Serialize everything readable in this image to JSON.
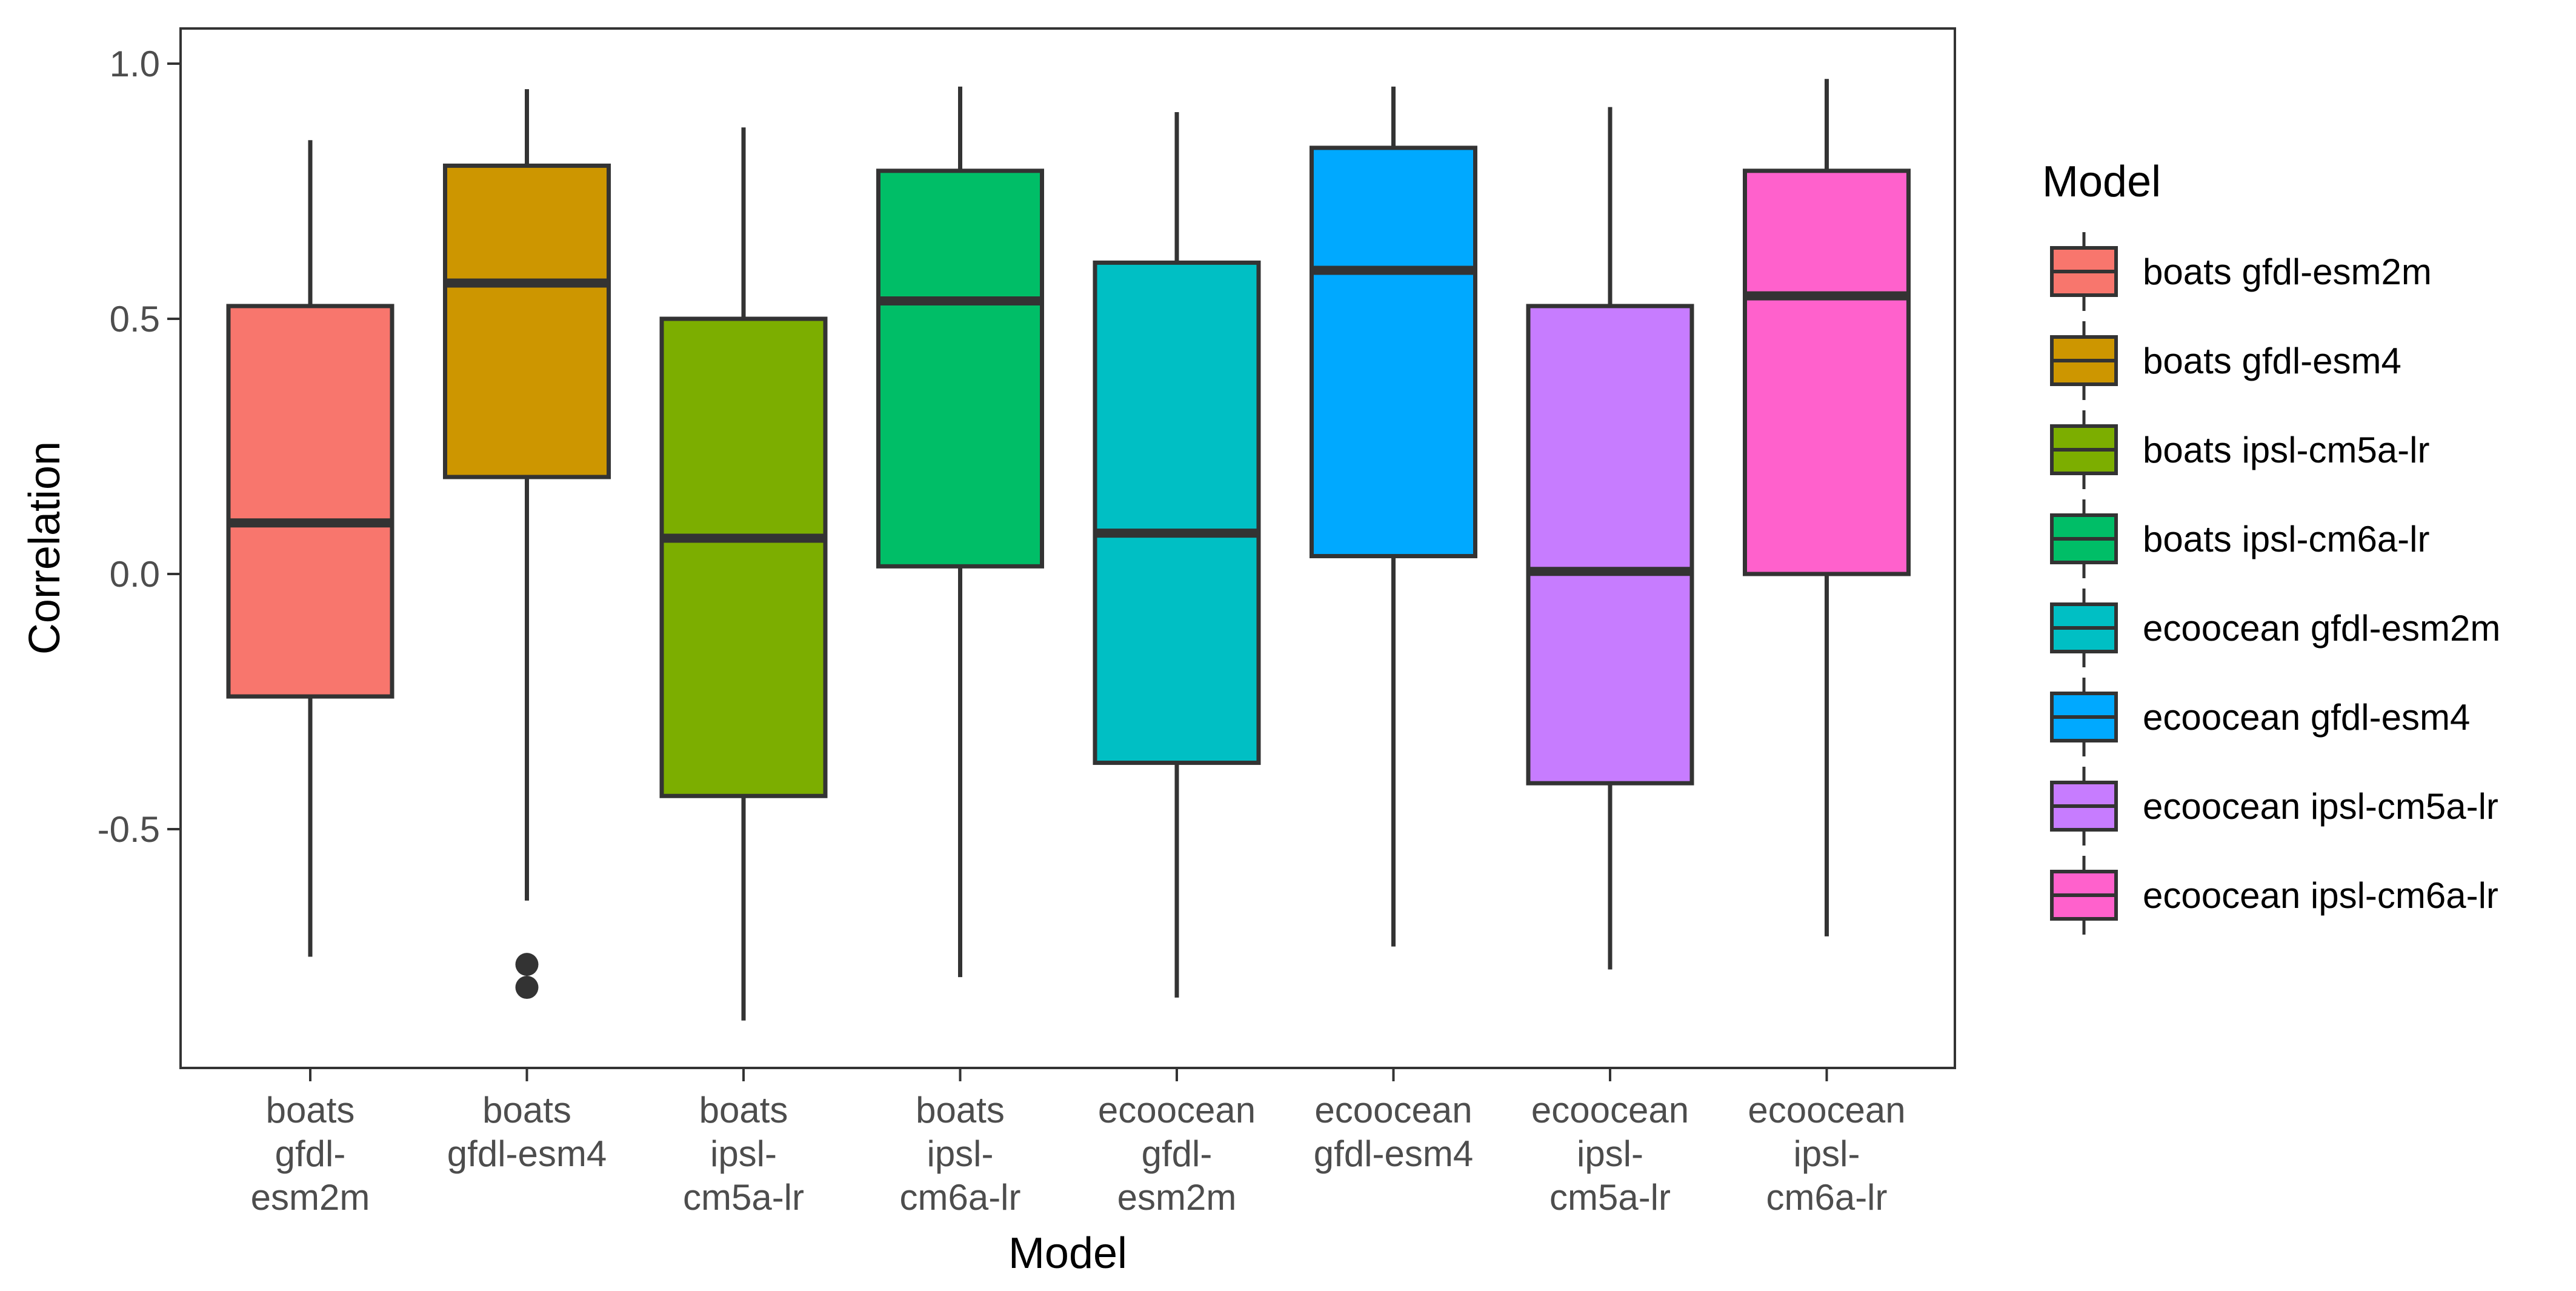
{
  "chart_data": {
    "type": "boxplot",
    "title": "",
    "xlabel": "Model",
    "ylabel": "Correlation",
    "ylim": [
      -0.96,
      1.06
    ],
    "yticks": [
      -0.5,
      0.0,
      0.5,
      1.0
    ],
    "ytick_labels": [
      "-0.5",
      "0.0",
      "0.5",
      "1.0"
    ],
    "grid": false,
    "legend": {
      "title": "Model",
      "placement": "right"
    },
    "categories": [
      {
        "name": "boats gfdl-esm2m",
        "tick_lines": [
          "boats",
          "gfdl-",
          "esm2m"
        ],
        "color": "#F8766D",
        "min": -0.75,
        "q1": -0.24,
        "median": 0.1,
        "q3": 0.525,
        "max": 0.85,
        "outliers": []
      },
      {
        "name": "boats gfdl-esm4",
        "tick_lines": [
          "boats",
          "gfdl-esm4"
        ],
        "color": "#CD9600",
        "min": -0.64,
        "q1": 0.19,
        "median": 0.57,
        "q3": 0.8,
        "max": 0.95,
        "outliers": [
          -0.765,
          -0.81
        ]
      },
      {
        "name": "boats ipsl-cm5a-lr",
        "tick_lines": [
          "boats",
          "ipsl-",
          "cm5a-lr"
        ],
        "color": "#7CAE00",
        "min": -0.875,
        "q1": -0.435,
        "median": 0.07,
        "q3": 0.5,
        "max": 0.875,
        "outliers": []
      },
      {
        "name": "boats ipsl-cm6a-lr",
        "tick_lines": [
          "boats",
          "ipsl-",
          "cm6a-lr"
        ],
        "color": "#00BE67",
        "min": -0.79,
        "q1": 0.015,
        "median": 0.535,
        "q3": 0.79,
        "max": 0.955,
        "outliers": []
      },
      {
        "name": "ecoocean gfdl-esm2m",
        "tick_lines": [
          "ecoocean",
          "gfdl-",
          "esm2m"
        ],
        "color": "#00BFC4",
        "min": -0.83,
        "q1": -0.37,
        "median": 0.08,
        "q3": 0.61,
        "max": 0.905,
        "outliers": []
      },
      {
        "name": "ecoocean gfdl-esm4",
        "tick_lines": [
          "ecoocean",
          "gfdl-esm4"
        ],
        "color": "#00A9FF",
        "min": -0.73,
        "q1": 0.035,
        "median": 0.595,
        "q3": 0.835,
        "max": 0.955,
        "outliers": []
      },
      {
        "name": "ecoocean ipsl-cm5a-lr",
        "tick_lines": [
          "ecoocean",
          "ipsl-",
          "cm5a-lr"
        ],
        "color": "#C77CFF",
        "min": -0.775,
        "q1": -0.41,
        "median": 0.005,
        "q3": 0.525,
        "max": 0.915,
        "outliers": []
      },
      {
        "name": "ecoocean ipsl-cm6a-lr",
        "tick_lines": [
          "ecoocean",
          "ipsl-",
          "cm6a-lr"
        ],
        "color": "#FF61CC",
        "min": -0.71,
        "q1": 0.0,
        "median": 0.545,
        "q3": 0.79,
        "max": 0.97,
        "outliers": []
      }
    ]
  }
}
